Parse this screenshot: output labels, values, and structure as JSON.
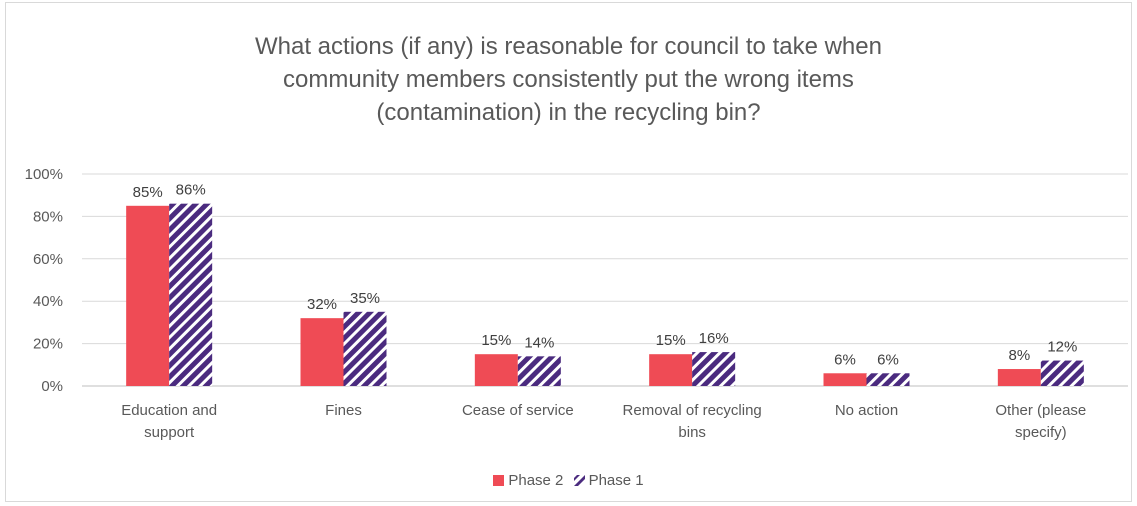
{
  "chart_data": {
    "type": "bar",
    "title": "What actions (if any) is reasonable for council to take when\ncommunity members consistently put the wrong items\n(contamination) in the recycling bin?",
    "categories": [
      "Education and\nsupport",
      "Fines",
      "Cease of service",
      "Removal of recycling\nbins",
      "No action",
      "Other (please\nspecify)"
    ],
    "series": [
      {
        "name": "Phase 2",
        "values": [
          85,
          32,
          15,
          15,
          6,
          8
        ],
        "labels": [
          "85%",
          "32%",
          "15%",
          "15%",
          "6%",
          "8%"
        ],
        "color": "#ef4b55",
        "pattern": "solid"
      },
      {
        "name": "Phase 1",
        "values": [
          86,
          35,
          14,
          16,
          6,
          12
        ],
        "labels": [
          "86%",
          "35%",
          "14%",
          "16%",
          "6%",
          "12%"
        ],
        "color": "#4b2b7f",
        "pattern": "diagonal-stripes"
      }
    ],
    "yticks": [
      "0%",
      "20%",
      "40%",
      "60%",
      "80%",
      "100%"
    ],
    "ylim": [
      0,
      100
    ],
    "grid": true,
    "legend_position": "bottom"
  }
}
